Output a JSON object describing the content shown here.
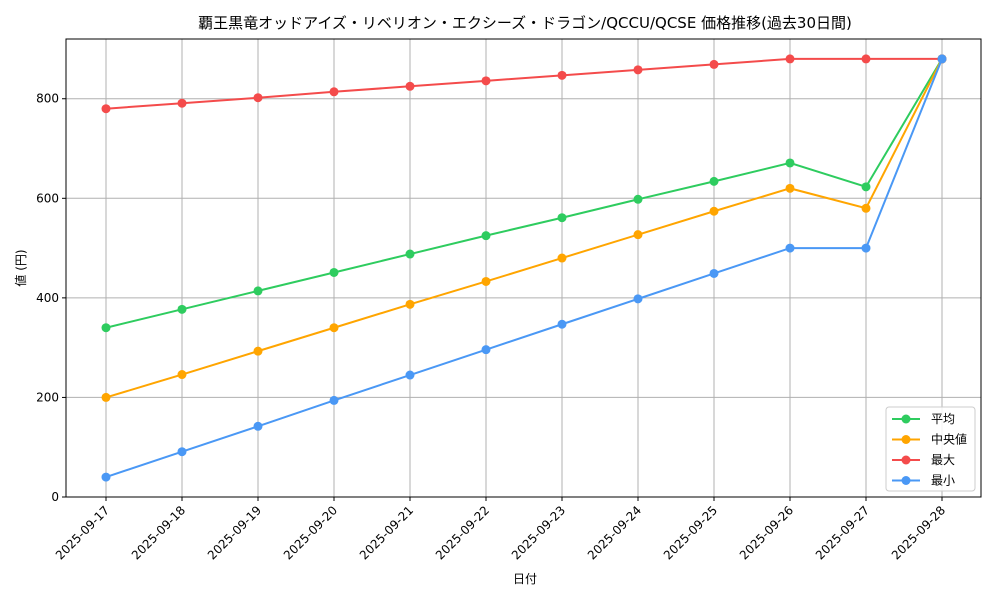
{
  "chart_data": {
    "type": "line",
    "title": "覇王黒竜オッドアイズ・リベリオン・エクシーズ・ドラゴン/QCCU/QCSE 価格推移(過去30日間)",
    "xlabel": "日付",
    "ylabel": "値 (円)",
    "categories": [
      "2025-09-17",
      "2025-09-18",
      "2025-09-19",
      "2025-09-20",
      "2025-09-21",
      "2025-09-22",
      "2025-09-23",
      "2025-09-24",
      "2025-09-25",
      "2025-09-26",
      "2025-09-27",
      "2025-09-28"
    ],
    "ylim": [
      0,
      920
    ],
    "yticks": [
      0,
      200,
      400,
      600,
      800
    ],
    "grid": true,
    "legend_position": "bottom-right",
    "series": [
      {
        "name": "平均",
        "color": "#2ecc5f",
        "values": [
          340,
          377,
          414,
          451,
          488,
          525,
          561,
          598,
          634,
          671,
          623,
          880
        ]
      },
      {
        "name": "中央値",
        "color": "#ffa500",
        "values": [
          200,
          246,
          293,
          340,
          387,
          433,
          480,
          527,
          574,
          620,
          580,
          880
        ]
      },
      {
        "name": "最大",
        "color": "#f44b4b",
        "values": [
          780,
          791,
          802,
          814,
          825,
          836,
          847,
          858,
          869,
          880,
          880,
          880
        ]
      },
      {
        "name": "最小",
        "color": "#4a98f5",
        "values": [
          40,
          91,
          142,
          194,
          245,
          296,
          347,
          398,
          449,
          500,
          500,
          880
        ]
      }
    ]
  }
}
